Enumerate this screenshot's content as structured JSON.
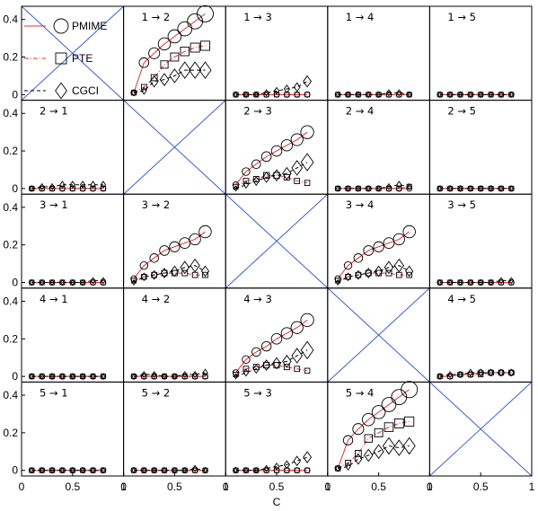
{
  "chart_data": {
    "type": "line",
    "grid_rows": 5,
    "grid_cols": 5,
    "xlabel": "C",
    "ylabel": "",
    "xlim": [
      0,
      1
    ],
    "ylim": [
      -0.03,
      0.47
    ],
    "xticks": [
      0,
      0.5,
      1
    ],
    "xtick_labels": [
      "0",
      "0.5",
      "1"
    ],
    "yticks": [
      0,
      0.2,
      0.4
    ],
    "ytick_labels": [
      "0",
      "0.2",
      "0.4"
    ],
    "legend": {
      "placement": "top-left",
      "entries": [
        {
          "label": "PMIME",
          "marker": "circle",
          "line": "solid"
        },
        {
          "label": "PTE",
          "marker": "square",
          "line": "dashdot"
        },
        {
          "label": "CGCI",
          "marker": "diamond",
          "line": "dashed"
        }
      ]
    },
    "x": [
      0.1,
      0.2,
      0.3,
      0.4,
      0.5,
      0.6,
      0.7,
      0.8
    ],
    "colors": {
      "pmime": "#e03030",
      "pte": "#e03030",
      "cgci": "#000000",
      "diag": "#3a5fcd",
      "marker": "#000000"
    },
    "panels": [
      {
        "title": "",
        "diagonal": true,
        "series": []
      },
      {
        "title": "1 → 2",
        "diagonal": false,
        "series": [
          {
            "name": "PMIME",
            "values": [
              0.01,
              0.17,
              0.22,
              0.27,
              0.31,
              0.35,
              0.39,
              0.43
            ]
          },
          {
            "name": "PTE",
            "values": [
              0.01,
              0.04,
              0.09,
              0.16,
              0.2,
              0.23,
              0.25,
              0.26
            ]
          },
          {
            "name": "CGCI",
            "values": [
              0.01,
              0.02,
              0.07,
              0.08,
              0.1,
              0.13,
              0.13,
              0.13
            ]
          }
        ]
      },
      {
        "title": "1 → 3",
        "diagonal": false,
        "series": [
          {
            "name": "PMIME",
            "values": [
              0,
              0,
              0,
              0,
              0,
              0,
              0,
              0
            ]
          },
          {
            "name": "PTE",
            "values": [
              0,
              0,
              0,
              0,
              0,
              0,
              0,
              0
            ]
          },
          {
            "name": "CGCI",
            "values": [
              0,
              0,
              0,
              0.01,
              0.02,
              0.03,
              0.04,
              0.07
            ]
          }
        ]
      },
      {
        "title": "1 → 4",
        "diagonal": false,
        "series": [
          {
            "name": "PMIME",
            "values": [
              0,
              0,
              0,
              0,
              0,
              0,
              0,
              0
            ]
          },
          {
            "name": "PTE",
            "values": [
              0,
              0,
              0,
              0,
              0,
              0,
              0,
              0
            ]
          },
          {
            "name": "CGCI",
            "values": [
              0,
              0,
              0,
              0,
              0,
              0.01,
              0.01,
              0
            ]
          }
        ]
      },
      {
        "title": "1 → 5",
        "diagonal": false,
        "series": [
          {
            "name": "PMIME",
            "values": [
              0,
              0,
              0,
              0,
              0,
              0,
              0,
              0
            ]
          },
          {
            "name": "PTE",
            "values": [
              0,
              0,
              0,
              0,
              0,
              0,
              0,
              0
            ]
          },
          {
            "name": "CGCI",
            "values": [
              0,
              0,
              0,
              0,
              0,
              0,
              0,
              0
            ]
          }
        ]
      },
      {
        "title": "2 → 1",
        "diagonal": false,
        "series": [
          {
            "name": "PMIME",
            "values": [
              0,
              0,
              0,
              0,
              0,
              0,
              0,
              0
            ]
          },
          {
            "name": "PTE",
            "values": [
              0,
              0,
              0,
              0,
              0,
              0,
              0,
              0
            ]
          },
          {
            "name": "CGCI",
            "values": [
              0,
              0.01,
              0.01,
              0.02,
              0.02,
              0.02,
              0.02,
              0.02
            ]
          }
        ]
      },
      {
        "title": "",
        "diagonal": true,
        "series": []
      },
      {
        "title": "2 → 3",
        "diagonal": false,
        "series": [
          {
            "name": "PMIME",
            "values": [
              0.02,
              0.09,
              0.13,
              0.17,
              0.2,
              0.23,
              0.26,
              0.3
            ]
          },
          {
            "name": "PTE",
            "values": [
              0.01,
              0.04,
              0.05,
              0.07,
              0.07,
              0.06,
              0.04,
              0.03
            ]
          },
          {
            "name": "CGCI",
            "values": [
              0,
              0.02,
              0.04,
              0.06,
              0.07,
              0.08,
              0.11,
              0.14
            ]
          }
        ]
      },
      {
        "title": "2 → 4",
        "diagonal": false,
        "series": [
          {
            "name": "PMIME",
            "values": [
              0,
              0,
              0,
              0,
              0,
              0,
              0,
              0
            ]
          },
          {
            "name": "PTE",
            "values": [
              0,
              0,
              0,
              0,
              0,
              0,
              0,
              0.01
            ]
          },
          {
            "name": "CGCI",
            "values": [
              0,
              0,
              0,
              0,
              0,
              0.01,
              0.02,
              0.01
            ]
          }
        ]
      },
      {
        "title": "2 → 5",
        "diagonal": false,
        "series": [
          {
            "name": "PMIME",
            "values": [
              0,
              0,
              0,
              0,
              0,
              0,
              0,
              0
            ]
          },
          {
            "name": "PTE",
            "values": [
              0,
              0,
              0,
              0,
              0,
              0,
              0,
              0
            ]
          },
          {
            "name": "CGCI",
            "values": [
              0,
              0,
              0,
              0,
              0,
              0,
              0,
              0
            ]
          }
        ]
      },
      {
        "title": "3 → 1",
        "diagonal": false,
        "series": [
          {
            "name": "PMIME",
            "values": [
              0,
              0,
              0,
              0,
              0,
              0,
              0,
              0
            ]
          },
          {
            "name": "PTE",
            "values": [
              0,
              0,
              0,
              0,
              0,
              0,
              0,
              0
            ]
          },
          {
            "name": "CGCI",
            "values": [
              0,
              0,
              0,
              0,
              0,
              0,
              0.01,
              0.01
            ]
          }
        ]
      },
      {
        "title": "3 → 2",
        "diagonal": false,
        "series": [
          {
            "name": "PMIME",
            "values": [
              0.02,
              0.09,
              0.13,
              0.17,
              0.19,
              0.21,
              0.23,
              0.27
            ]
          },
          {
            "name": "PTE",
            "values": [
              0.01,
              0.03,
              0.04,
              0.05,
              0.05,
              0.05,
              0.04,
              0.04
            ]
          },
          {
            "name": "CGCI",
            "values": [
              0,
              0.03,
              0.04,
              0.05,
              0.06,
              0.08,
              0.09,
              0.06
            ]
          }
        ]
      },
      {
        "title": "",
        "diagonal": true,
        "series": []
      },
      {
        "title": "3 → 4",
        "diagonal": false,
        "series": [
          {
            "name": "PMIME",
            "values": [
              0.02,
              0.09,
              0.13,
              0.17,
              0.19,
              0.21,
              0.23,
              0.27
            ]
          },
          {
            "name": "PTE",
            "values": [
              0.01,
              0.03,
              0.04,
              0.05,
              0.05,
              0.05,
              0.04,
              0.04
            ]
          },
          {
            "name": "CGCI",
            "values": [
              0,
              0.03,
              0.04,
              0.05,
              0.06,
              0.08,
              0.09,
              0.06
            ]
          }
        ]
      },
      {
        "title": "3 → 5",
        "diagonal": false,
        "series": [
          {
            "name": "PMIME",
            "values": [
              0,
              0,
              0,
              0,
              0,
              0,
              0,
              0
            ]
          },
          {
            "name": "PTE",
            "values": [
              0,
              0,
              0,
              0,
              0,
              0,
              0,
              0
            ]
          },
          {
            "name": "CGCI",
            "values": [
              0,
              0,
              0,
              0,
              0,
              0,
              0.01,
              0.01
            ]
          }
        ]
      },
      {
        "title": "4 → 1",
        "diagonal": false,
        "series": [
          {
            "name": "PMIME",
            "values": [
              0,
              0,
              0,
              0,
              0,
              0,
              0,
              0
            ]
          },
          {
            "name": "PTE",
            "values": [
              0,
              0,
              0,
              0,
              0,
              0,
              0,
              0
            ]
          },
          {
            "name": "CGCI",
            "values": [
              0,
              0,
              0,
              0,
              0,
              0,
              0,
              0
            ]
          }
        ]
      },
      {
        "title": "4 → 2",
        "diagonal": false,
        "series": [
          {
            "name": "PMIME",
            "values": [
              0,
              0,
              0,
              0,
              0,
              0,
              0,
              0
            ]
          },
          {
            "name": "PTE",
            "values": [
              0,
              0,
              0,
              0,
              0,
              0,
              0,
              0
            ]
          },
          {
            "name": "CGCI",
            "values": [
              0,
              0.01,
              0.01,
              0,
              0,
              0.01,
              0.01,
              0.02
            ]
          }
        ]
      },
      {
        "title": "4 → 3",
        "diagonal": false,
        "series": [
          {
            "name": "PMIME",
            "values": [
              0.02,
              0.09,
              0.13,
              0.16,
              0.2,
              0.23,
              0.26,
              0.3
            ]
          },
          {
            "name": "PTE",
            "values": [
              0.01,
              0.04,
              0.05,
              0.06,
              0.06,
              0.05,
              0.04,
              0.03
            ]
          },
          {
            "name": "CGCI",
            "values": [
              0,
              0.02,
              0.04,
              0.06,
              0.07,
              0.08,
              0.11,
              0.14
            ]
          }
        ]
      },
      {
        "title": "",
        "diagonal": true,
        "series": []
      },
      {
        "title": "4 → 5",
        "diagonal": false,
        "series": [
          {
            "name": "PMIME",
            "values": [
              0,
              0,
              0.01,
              0.01,
              0.02,
              0.02,
              0.02,
              0.02
            ]
          },
          {
            "name": "PTE",
            "values": [
              0,
              0,
              0.01,
              0.01,
              0.01,
              0.02,
              0.02,
              0.02
            ]
          },
          {
            "name": "CGCI",
            "values": [
              0,
              0.01,
              0.01,
              0.02,
              0.02,
              0.02,
              0.02,
              0.02
            ]
          }
        ]
      },
      {
        "title": "5 → 1",
        "diagonal": false,
        "series": [
          {
            "name": "PMIME",
            "values": [
              0,
              0,
              0,
              0,
              0,
              0,
              0,
              0
            ]
          },
          {
            "name": "PTE",
            "values": [
              0,
              0,
              0,
              0,
              0,
              0,
              0,
              0
            ]
          },
          {
            "name": "CGCI",
            "values": [
              0,
              0,
              0,
              0,
              0,
              0,
              0,
              0
            ]
          }
        ]
      },
      {
        "title": "5 → 2",
        "diagonal": false,
        "series": [
          {
            "name": "PMIME",
            "values": [
              0,
              0,
              0,
              0,
              0,
              0,
              0,
              0
            ]
          },
          {
            "name": "PTE",
            "values": [
              0,
              0,
              0,
              0,
              0,
              0,
              0,
              0
            ]
          },
          {
            "name": "CGCI",
            "values": [
              0,
              0,
              0,
              0,
              0,
              0,
              0.01,
              0
            ]
          }
        ]
      },
      {
        "title": "5 → 3",
        "diagonal": false,
        "series": [
          {
            "name": "PMIME",
            "values": [
              0,
              0,
              0,
              0,
              0,
              0,
              0,
              0
            ]
          },
          {
            "name": "PTE",
            "values": [
              0,
              0,
              0,
              0,
              0,
              0,
              0,
              0
            ]
          },
          {
            "name": "CGCI",
            "values": [
              0,
              0,
              0,
              0.01,
              0.02,
              0.03,
              0.05,
              0.07
            ]
          }
        ]
      },
      {
        "title": "5 → 4",
        "diagonal": false,
        "series": [
          {
            "name": "PMIME",
            "values": [
              0.01,
              0.16,
              0.22,
              0.27,
              0.31,
              0.35,
              0.39,
              0.43
            ]
          },
          {
            "name": "PTE",
            "values": [
              0.01,
              0.04,
              0.09,
              0.17,
              0.2,
              0.23,
              0.25,
              0.26
            ]
          },
          {
            "name": "CGCI",
            "values": [
              0.01,
              0.02,
              0.06,
              0.08,
              0.1,
              0.13,
              0.12,
              0.13
            ]
          }
        ]
      },
      {
        "title": "",
        "diagonal": true,
        "series": []
      }
    ]
  }
}
